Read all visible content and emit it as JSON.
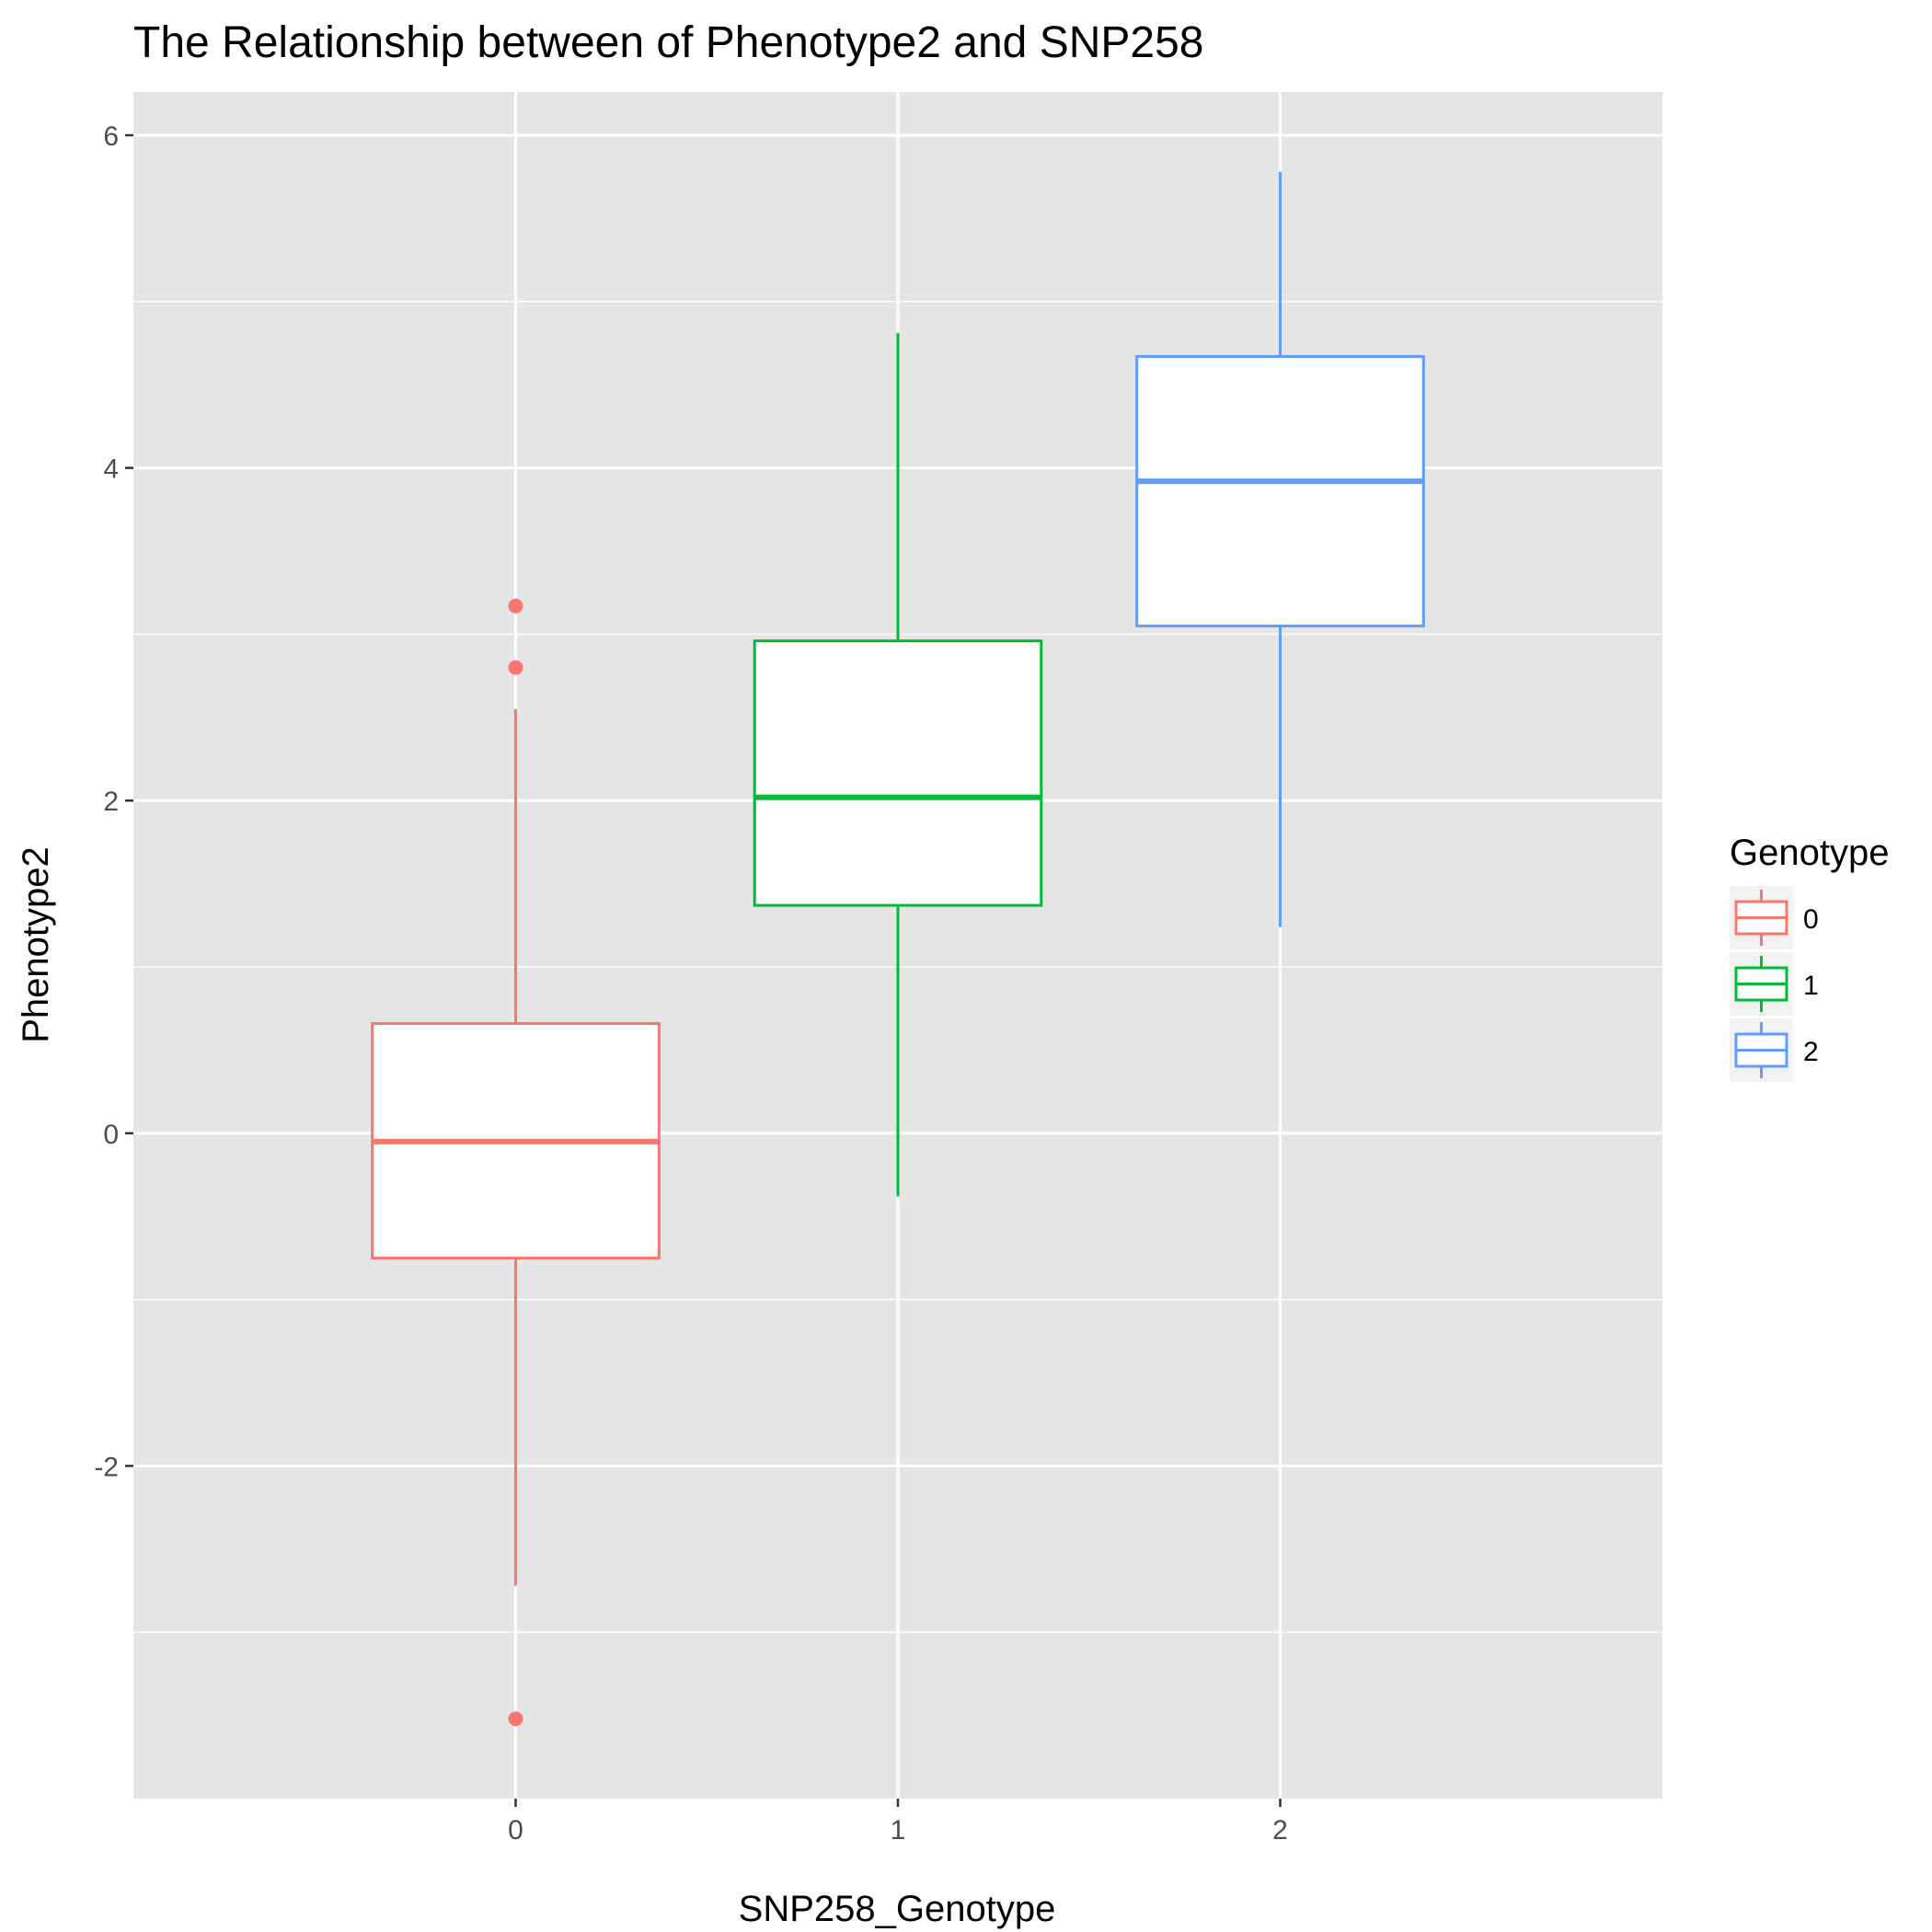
{
  "chart_data": {
    "type": "box",
    "title": "The Relationship between of Phenotype2 and SNP258",
    "xlabel": "SNP258_Genotype",
    "ylabel": "Phenotype2",
    "categories": [
      "0",
      "1",
      "2"
    ],
    "y_ticks": [
      "-2",
      "0",
      "2",
      "4",
      "6"
    ],
    "ylim": [
      -4.0,
      6.26
    ],
    "grid": true,
    "legend": {
      "title": "Genotype",
      "position": "right",
      "entries": [
        "0",
        "1",
        "2"
      ]
    },
    "series": [
      {
        "category": "0",
        "whisker_low": -2.72,
        "q1": -0.75,
        "median": -0.05,
        "q3": 0.66,
        "whisker_high": 2.55,
        "outliers": [
          3.17,
          2.8,
          -3.52
        ]
      },
      {
        "category": "1",
        "whisker_low": -0.38,
        "q1": 1.37,
        "median": 2.02,
        "q3": 2.96,
        "whisker_high": 4.81,
        "outliers": []
      },
      {
        "category": "2",
        "whisker_low": 1.24,
        "q1": 3.05,
        "median": 3.92,
        "q3": 4.67,
        "whisker_high": 5.78,
        "outliers": []
      }
    ],
    "colors": [
      "#F8766D",
      "#00BA38",
      "#619CFF"
    ],
    "panel_background": "#E5E5E5",
    "grid_color": "#FFFFFF"
  }
}
